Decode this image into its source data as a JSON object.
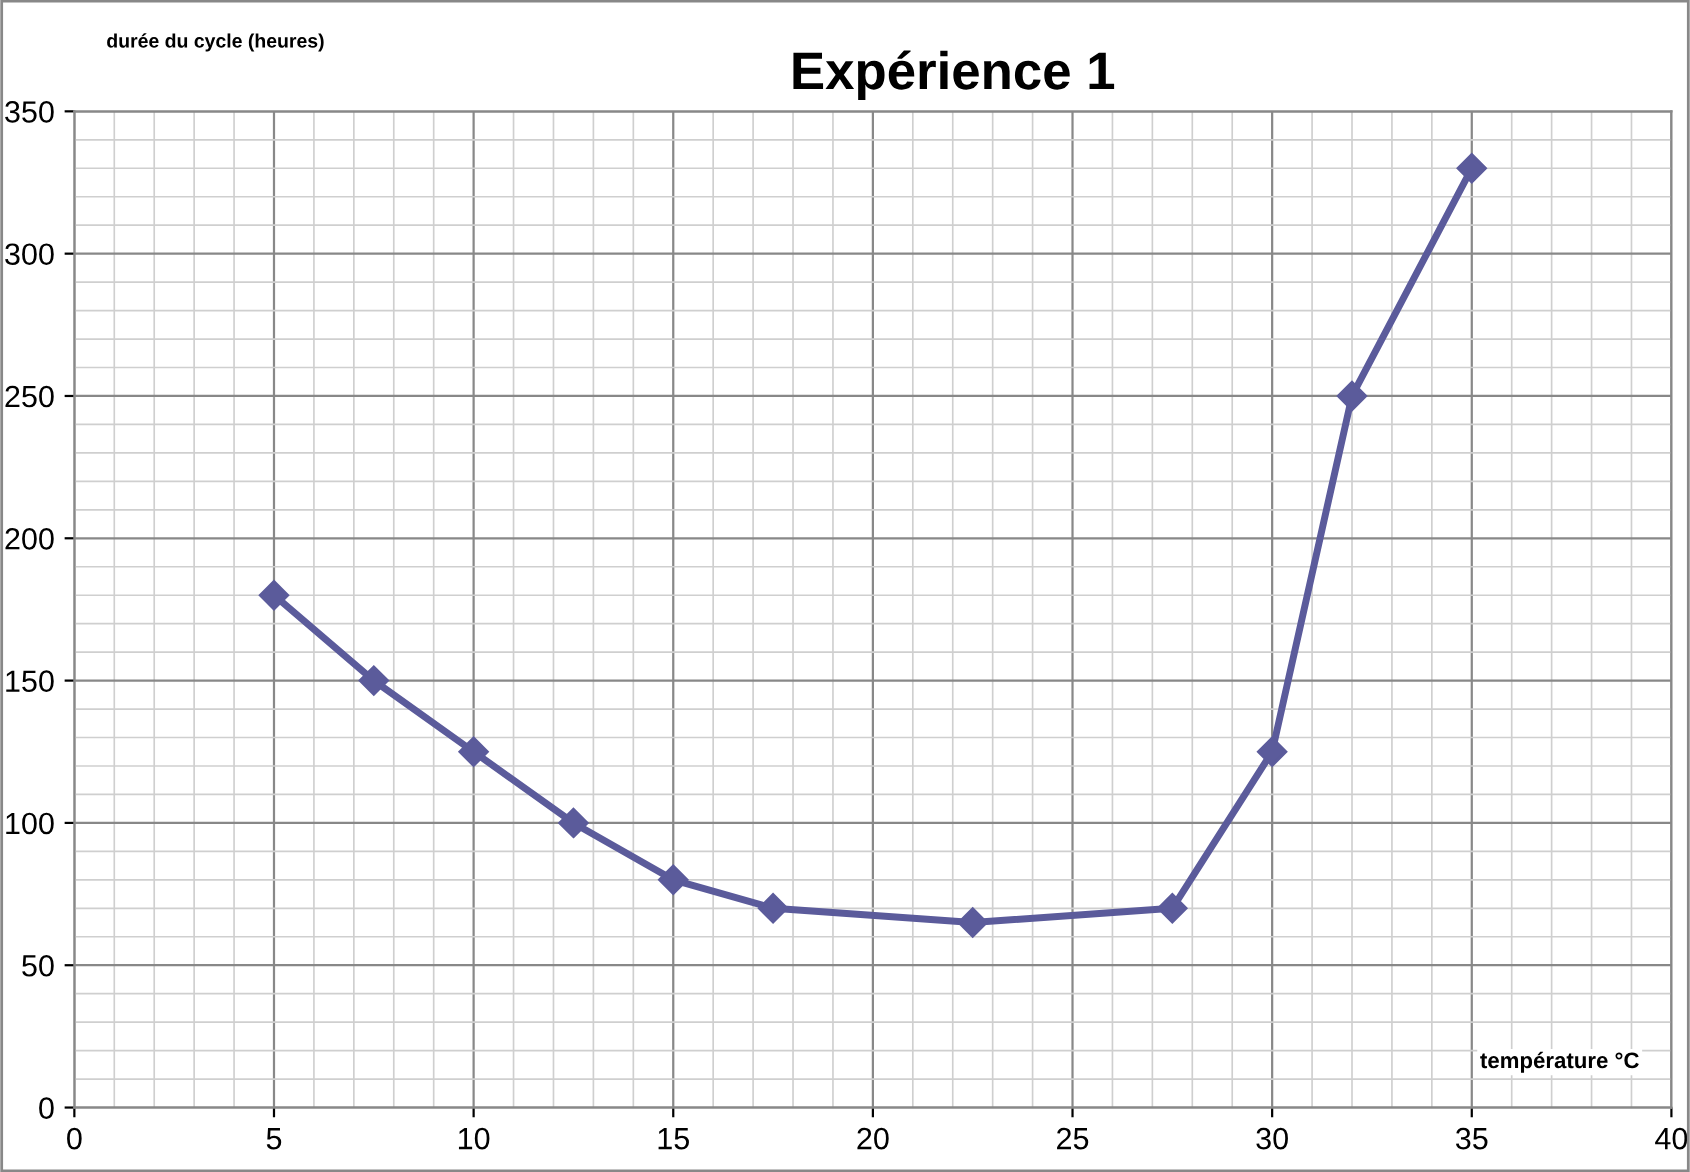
{
  "chart_data": {
    "type": "line",
    "title": "Expérience 1",
    "ylabel": "durée du cycle (heures)",
    "xlabel": "température °C",
    "series": [
      {
        "color": "#5b5b9b",
        "x": [
          5,
          7.5,
          10,
          12.5,
          15,
          17.5,
          22.5,
          27.5,
          30,
          32,
          35
        ],
        "values": [
          180,
          150,
          125,
          100,
          80,
          70,
          65,
          70,
          125,
          250,
          330
        ]
      }
    ],
    "xlim": [
      0,
      40
    ],
    "xticks": [
      0,
      5,
      10,
      15,
      20,
      25,
      30,
      35,
      40
    ],
    "ylim": [
      0,
      350
    ],
    "yticks": [
      0,
      50,
      100,
      150,
      200,
      250,
      300,
      350
    ],
    "grid": true,
    "marker": "diamond",
    "line_style": "solid",
    "legend": false
  }
}
